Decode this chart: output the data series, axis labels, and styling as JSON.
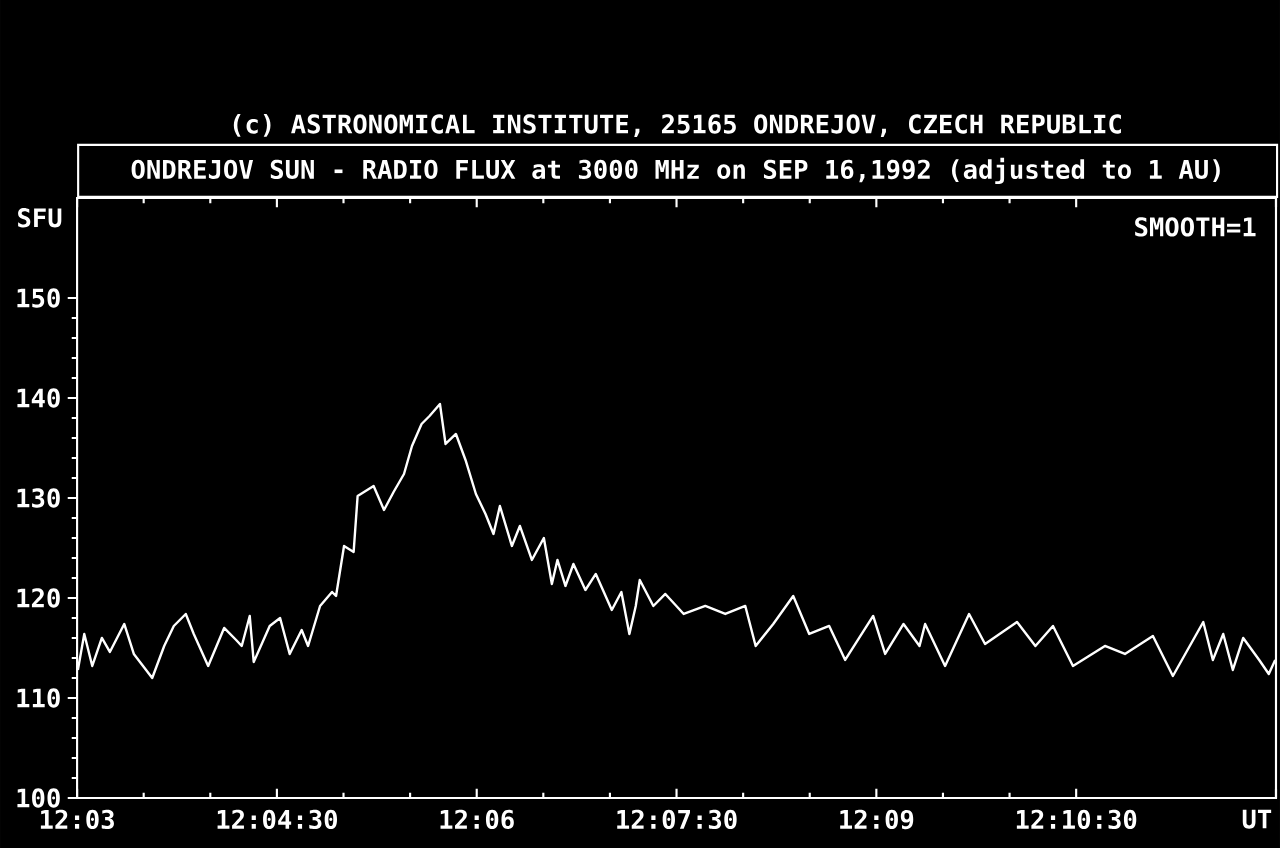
{
  "chart_data": {
    "type": "line",
    "title": "ONDREJOV SUN - RADIO FLUX at 3000 MHz on SEP 16,1992 (adjusted to 1 AU)",
    "ylabel": "SFU",
    "annotations": [
      "(c) ASTRONOMICAL INSTITUTE, 25165 ONDREJOV, CZECH REPUBLIC",
      "SMOOTH=1"
    ],
    "xlim": [
      12.05,
      12.2
    ],
    "ylim": [
      100,
      160
    ],
    "xticks": [
      {
        "value": 12.05,
        "label": "12:03"
      },
      {
        "value": 12.075,
        "label": "12:04:30"
      },
      {
        "value": 12.1,
        "label": "12:06"
      },
      {
        "value": 12.125,
        "label": "12:07:30"
      },
      {
        "value": 12.15,
        "label": "12:09"
      },
      {
        "value": 12.175,
        "label": "12:10:30"
      },
      {
        "value": 12.2,
        "label": "UT"
      }
    ],
    "yticks": [
      100,
      110,
      120,
      130,
      140,
      150
    ],
    "x": [
      12.0501,
      12.0509,
      12.0519,
      12.0531,
      12.0541,
      12.0559,
      12.0571,
      12.0594,
      12.0609,
      12.0621,
      12.0636,
      12.0646,
      12.0664,
      12.0684,
      12.0699,
      12.0706,
      12.0716,
      12.0721,
      12.0741,
      12.0754,
      12.0766,
      12.0781,
      12.0789,
      12.0804,
      12.0819,
      12.0824,
      12.0834,
      12.0846,
      12.0851,
      12.0871,
      12.0884,
      12.0896,
      12.0909,
      12.0919,
      12.0931,
      12.0941,
      12.0954,
      12.0961,
      12.0974,
      12.0986,
      12.0999,
      12.1011,
      12.1021,
      12.1029,
      12.1044,
      12.1054,
      12.1069,
      12.1084,
      12.1094,
      12.1101,
      12.1111,
      12.1121,
      12.1136,
      12.1149,
      12.1169,
      12.1181,
      12.1191,
      12.1199,
      12.1204,
      12.1221,
      12.1236,
      12.1259,
      12.1286,
      12.1311,
      12.1336,
      12.1349,
      12.1371,
      12.1396,
      12.1416,
      12.1441,
      12.1461,
      12.1496,
      12.1511,
      12.1534,
      12.1554,
      12.1561,
      12.1586,
      12.1616,
      12.1636,
      12.1676,
      12.1699,
      12.1721,
      12.1746,
      12.1786,
      12.1811,
      12.1846,
      12.1871,
      12.1909,
      12.1921,
      12.1934,
      12.1946,
      12.1959,
      12.1979,
      12.1991,
      12.1999
    ],
    "series": [
      {
        "color": "#ffffff",
        "values": [
          112.8,
          116.4,
          113.2,
          116,
          114.6,
          117.4,
          114.4,
          112,
          115.2,
          117.2,
          118.4,
          116.4,
          113.2,
          117,
          115.8,
          115.2,
          118.2,
          113.6,
          117.2,
          118,
          114.4,
          116.8,
          115.2,
          119.2,
          120.6,
          120.2,
          125.2,
          124.6,
          130.2,
          131.2,
          128.8,
          130.6,
          132.4,
          135.2,
          137.4,
          138.2,
          139.4,
          135.4,
          136.4,
          133.8,
          130.4,
          128.4,
          126.4,
          129.2,
          125.2,
          127.2,
          123.8,
          126,
          121.4,
          123.8,
          121.2,
          123.4,
          120.8,
          122.4,
          118.8,
          120.6,
          116.4,
          119.2,
          121.8,
          119.2,
          120.4,
          118.4,
          119.2,
          118.4,
          119.2,
          115.2,
          117.4,
          120.2,
          116.4,
          117.2,
          113.8,
          118.2,
          114.4,
          117.4,
          115.2,
          117.4,
          113.2,
          118.4,
          115.4,
          117.6,
          115.2,
          117.2,
          113.2,
          115.2,
          114.4,
          116.2,
          112.2,
          117.6,
          113.8,
          116.4,
          112.8,
          116,
          113.8,
          112.4,
          113.8
        ]
      }
    ]
  }
}
